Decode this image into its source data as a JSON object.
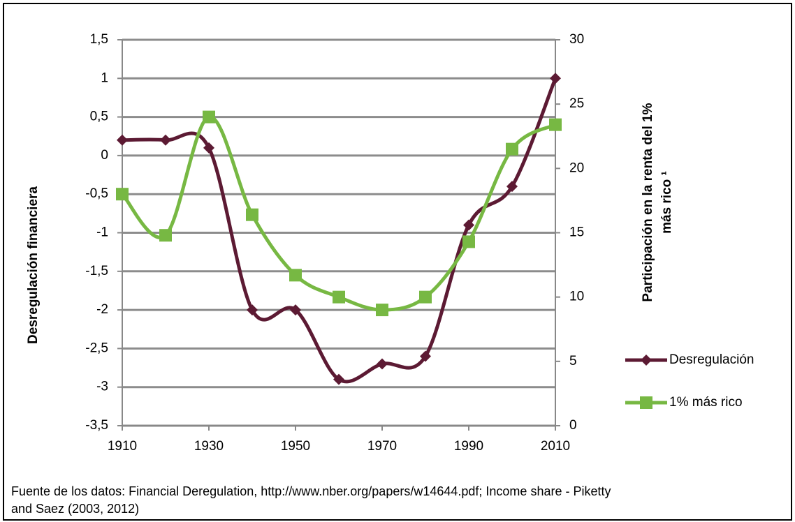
{
  "chart_data": {
    "type": "line",
    "x": [
      1910,
      1920,
      1930,
      1940,
      1950,
      1960,
      1970,
      1980,
      1990,
      2000,
      2010
    ],
    "xlim": [
      1910,
      2010
    ],
    "xticks": [
      1910,
      1930,
      1950,
      1970,
      1990,
      2010
    ],
    "ylim": [
      -3.5,
      1.5
    ],
    "yticks": [
      {
        "value": -3.5,
        "label": "-3,5"
      },
      -3,
      {
        "value": -2.5,
        "label": "-2,5"
      },
      -2,
      {
        "value": -1.5,
        "label": "-1,5"
      },
      -1,
      {
        "value": -0.5,
        "label": "-0,5"
      },
      0,
      {
        "value": 0.5,
        "label": "0,5"
      },
      1,
      {
        "value": 1.5,
        "label": "1,5"
      }
    ],
    "y2lim": [
      0,
      30
    ],
    "y2ticks": [
      0,
      5,
      10,
      15,
      20,
      25,
      30
    ],
    "ylabel": "Desregulación financiera",
    "y2label": [
      "Participación en la renta del 1%",
      "más rico ¹"
    ],
    "grid": true,
    "series": [
      {
        "name": "Desregulación",
        "color": "#5c1a33",
        "marker": "diamond",
        "values": [
          0.2,
          0.2,
          0.1,
          -2.0,
          -2.0,
          -2.9,
          -2.7,
          -2.6,
          -0.9,
          -0.4,
          1.0
        ]
      },
      {
        "name": "1% más rico",
        "color": "#77b843",
        "marker": "square",
        "axis": "y2",
        "values": [
          18,
          14.8,
          24,
          16.4,
          11.7,
          10,
          9,
          10,
          14.3,
          21.5,
          23.4
        ]
      }
    ],
    "footnote": [
      "Fuente de los datos: Financial Deregulation, http://www.nber.org/papers/w14644.pdf; Income share - Piketty",
      "and Saez (2003, 2012)"
    ]
  }
}
